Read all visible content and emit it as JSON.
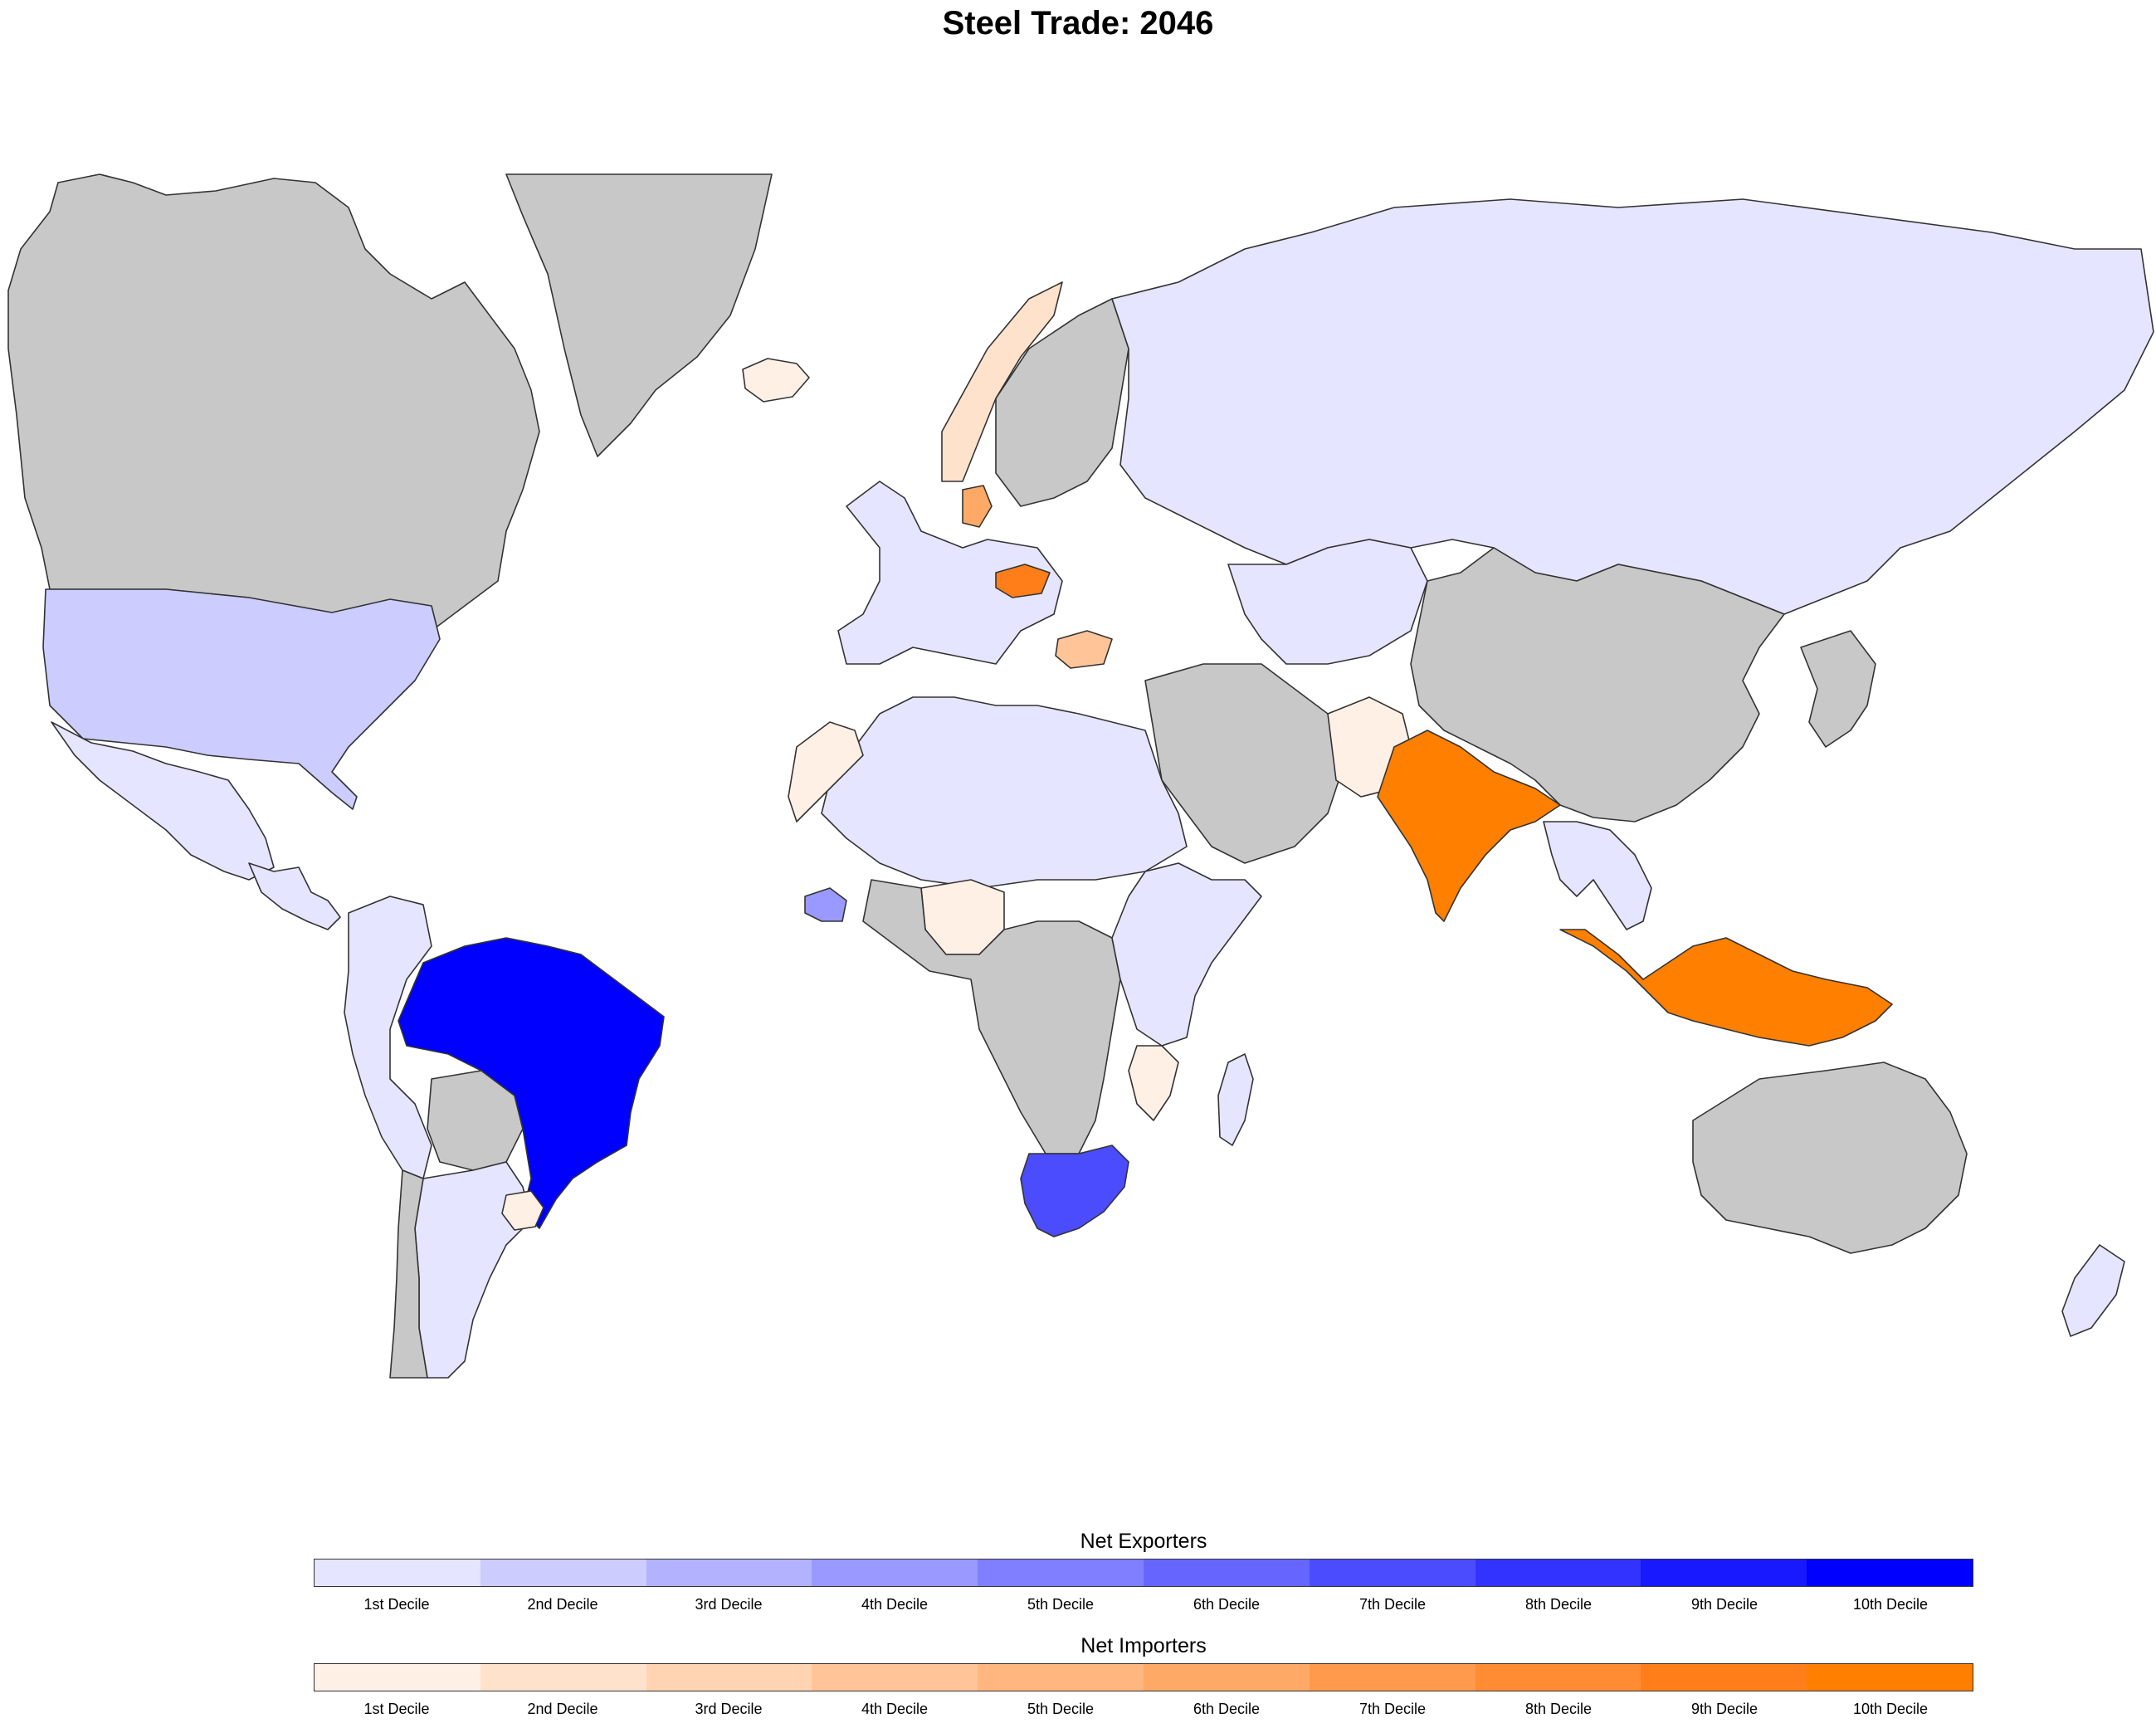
{
  "title": "Steel Trade: 2046",
  "colors": {
    "no_data": "#c8c8c8",
    "border": "#333333",
    "exporters": [
      "#e5e5ff",
      "#ccccff",
      "#b2b2ff",
      "#9999ff",
      "#7f7fff",
      "#6666ff",
      "#4c4cff",
      "#3333ff",
      "#1919ff",
      "#0000ff"
    ],
    "importers": [
      "#fff0e5",
      "#ffe2cc",
      "#ffd4b2",
      "#ffc599",
      "#ffb77f",
      "#ffa966",
      "#ff9a4c",
      "#ff8c33",
      "#ff7e19",
      "#ff7f00"
    ]
  },
  "legend": {
    "exporters_title": "Net Exporters",
    "importers_title": "Net Importers",
    "exporter_labels": [
      "1st Decile",
      "2nd Decile",
      "3rd Decile",
      "4th Decile",
      "5th Decile",
      "6th Decile",
      "7th Decile",
      "8th Decile",
      "9th Decile",
      "10th Decile"
    ],
    "importer_labels": [
      "1st Decile",
      "2nd Decile",
      "3rd Decile",
      "4th Decile",
      "5th Decile",
      "6th Decile",
      "7th Decile",
      "8th Decile",
      "9th Decile",
      "10th Decile"
    ]
  },
  "regions": [
    {
      "name": "Canada",
      "category": "none"
    },
    {
      "name": "Greenland",
      "category": "none"
    },
    {
      "name": "Iceland",
      "category": "importer",
      "decile": 1
    },
    {
      "name": "United States",
      "category": "exporter",
      "decile": 2
    },
    {
      "name": "Mexico",
      "category": "exporter",
      "decile": 1
    },
    {
      "name": "Central America",
      "category": "exporter",
      "decile": 1
    },
    {
      "name": "Brazil",
      "category": "exporter",
      "decile": 10
    },
    {
      "name": "Uruguay",
      "category": "importer",
      "decile": 1
    },
    {
      "name": "Argentina",
      "category": "exporter",
      "decile": 1
    },
    {
      "name": "Chile",
      "category": "none"
    },
    {
      "name": "Andean countries",
      "category": "exporter",
      "decile": 1
    },
    {
      "name": "Bolivia",
      "category": "none"
    },
    {
      "name": "Russia",
      "category": "exporter",
      "decile": 1
    },
    {
      "name": "Norway",
      "category": "importer",
      "decile": 2
    },
    {
      "name": "Sweden and Finland",
      "category": "none"
    },
    {
      "name": "Denmark",
      "category": "importer",
      "decile": 6
    },
    {
      "name": "Czech Republic",
      "category": "importer",
      "decile": 9
    },
    {
      "name": "Bulgaria",
      "category": "importer",
      "decile": 4
    },
    {
      "name": "Western Europe",
      "category": "exporter",
      "decile": 1
    },
    {
      "name": "Central Asia",
      "category": "exporter",
      "decile": 1
    },
    {
      "name": "China",
      "category": "none"
    },
    {
      "name": "Middle East",
      "category": "none"
    },
    {
      "name": "Pakistan",
      "category": "importer",
      "decile": 1
    },
    {
      "name": "India",
      "category": "importer",
      "decile": 10
    },
    {
      "name": "Southeast Asia",
      "category": "exporter",
      "decile": 1
    },
    {
      "name": "Indonesia",
      "category": "importer",
      "decile": 10
    },
    {
      "name": "Japan and Korea",
      "category": "none"
    },
    {
      "name": "Australia",
      "category": "none"
    },
    {
      "name": "New Zealand",
      "category": "exporter",
      "decile": 1
    },
    {
      "name": "North Africa",
      "category": "exporter",
      "decile": 1
    },
    {
      "name": "Morocco",
      "category": "importer",
      "decile": 1
    },
    {
      "name": "Guinea",
      "category": "exporter",
      "decile": 4
    },
    {
      "name": "Nigeria",
      "category": "importer",
      "decile": 1
    },
    {
      "name": "South Africa",
      "category": "exporter",
      "decile": 7
    },
    {
      "name": "Central and Southern Africa",
      "category": "none"
    },
    {
      "name": "East Africa",
      "category": "exporter",
      "decile": 1
    },
    {
      "name": "Mozambique",
      "category": "importer",
      "decile": 1
    },
    {
      "name": "Madagascar",
      "category": "exporter",
      "decile": 1
    }
  ]
}
